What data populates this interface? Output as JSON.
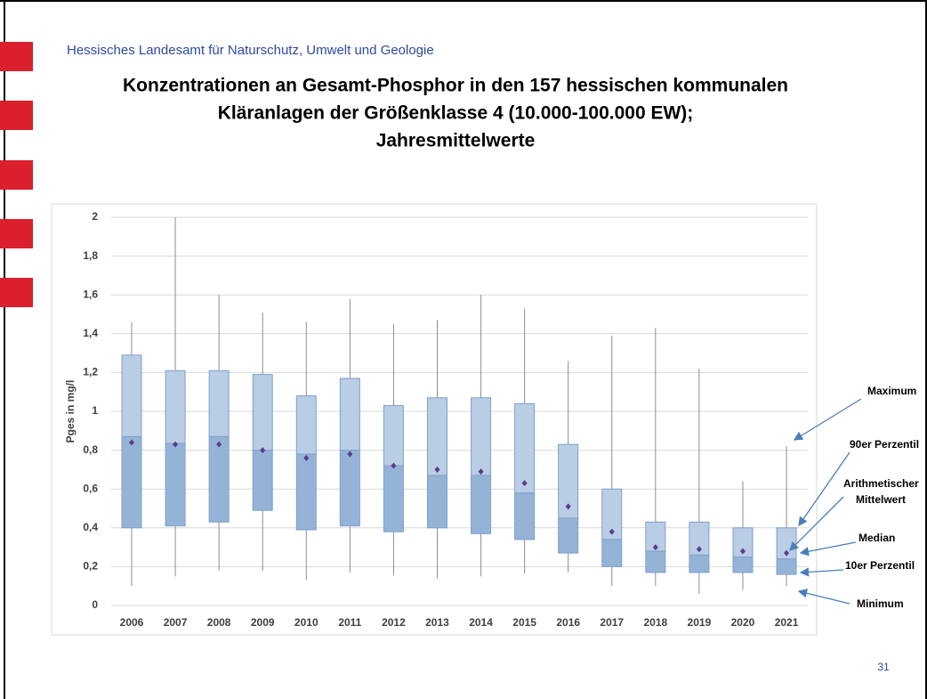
{
  "header": "Hessisches Landesamt für Naturschutz, Umwelt und Geologie",
  "page_number": "31",
  "chart_data": {
    "type": "box",
    "title": [
      "Konzentrationen an Gesamt-Phosphor in den 157 hessischen kommunalen",
      "Kläranlagen der Größenklasse 4 (10.000-100.000  EW);",
      "Jahresmittelwerte"
    ],
    "ylabel": "Pges in mg/l",
    "categories": [
      "2006",
      "2007",
      "2008",
      "2009",
      "2010",
      "2011",
      "2012",
      "2013",
      "2014",
      "2015",
      "2016",
      "2017",
      "2018",
      "2019",
      "2020",
      "2021"
    ],
    "min": [
      0.1,
      0.15,
      0.18,
      0.18,
      0.13,
      0.17,
      0.155,
      0.14,
      0.15,
      0.165,
      0.17,
      0.1,
      0.1,
      0.06,
      0.08,
      0.1
    ],
    "p10": [
      0.4,
      0.41,
      0.43,
      0.49,
      0.39,
      0.41,
      0.38,
      0.4,
      0.37,
      0.34,
      0.27,
      0.2,
      0.17,
      0.17,
      0.17,
      0.16
    ],
    "median": [
      0.87,
      0.835,
      0.87,
      0.8,
      0.78,
      0.8,
      0.72,
      0.67,
      0.67,
      0.58,
      0.45,
      0.34,
      0.28,
      0.26,
      0.25,
      0.24
    ],
    "p90": [
      1.29,
      1.21,
      1.21,
      1.19,
      1.08,
      1.17,
      1.03,
      1.07,
      1.07,
      1.04,
      0.83,
      0.6,
      0.43,
      0.43,
      0.4,
      0.4
    ],
    "max": [
      1.46,
      2.0,
      1.6,
      1.51,
      1.46,
      1.58,
      1.45,
      1.47,
      1.6,
      1.53,
      1.26,
      1.39,
      1.43,
      1.22,
      0.64,
      0.82
    ],
    "mean": [
      0.84,
      0.83,
      0.83,
      0.8,
      0.76,
      0.78,
      0.72,
      0.7,
      0.69,
      0.63,
      0.51,
      0.38,
      0.3,
      0.29,
      0.28,
      0.27
    ],
    "colors": {
      "upper": "#b9cde5",
      "lower": "#95b3d7",
      "border": "#7f9fcb",
      "whisker": "#8c8c8c",
      "mean": "#5b3c8c"
    },
    "ylim": [
      0,
      2
    ],
    "yticks": [
      0,
      {
        "value": 0.2,
        "label": "0,2"
      },
      {
        "value": 0.4,
        "label": "0,4"
      },
      {
        "value": 0.6,
        "label": "0,6"
      },
      {
        "value": 0.8,
        "label": "0,8"
      },
      1,
      {
        "value": 1.2,
        "label": "1,2"
      },
      {
        "value": 1.4,
        "label": "1,4"
      },
      {
        "value": 1.6,
        "label": "1,6"
      },
      {
        "value": 1.8,
        "label": "1,8"
      },
      2
    ],
    "grid": true,
    "annotations": [
      [
        "Maximum"
      ],
      [
        "90er Perzentil"
      ],
      [
        "Arithmetischer",
        "Mittelwert"
      ],
      [
        "Median"
      ],
      [
        "10er Perzentil"
      ],
      [
        "Minimum"
      ]
    ]
  }
}
